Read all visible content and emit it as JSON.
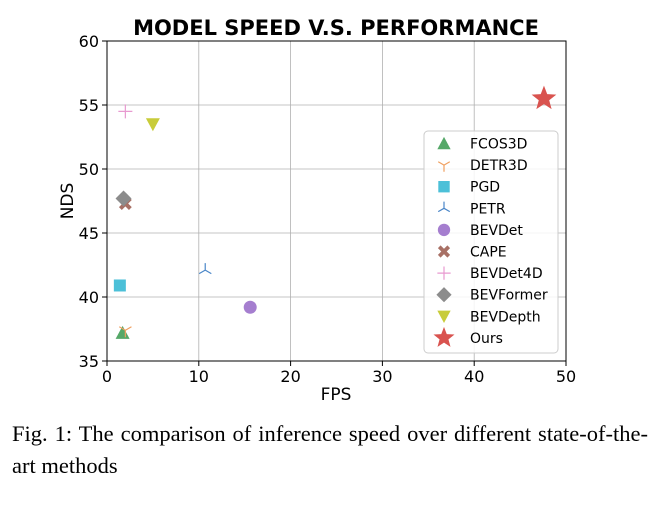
{
  "caption": "Fig. 1: The comparison of inference speed over different state-of-the-art methods",
  "chart_data": {
    "type": "scatter",
    "title": "MODEL SPEED V.S. PERFORMANCE",
    "xlabel": "FPS",
    "ylabel": "NDS",
    "xlim": [
      0,
      50
    ],
    "ylim": [
      35,
      60
    ],
    "xticks": [
      0,
      10,
      20,
      30,
      40,
      50
    ],
    "yticks": [
      35,
      40,
      45,
      50,
      55,
      60
    ],
    "grid": true,
    "legend_position": "right",
    "series": [
      {
        "name": "FCOS3D",
        "x": 1.7,
        "y": 37.2,
        "marker": "triangle-up",
        "color": "#55a868"
      },
      {
        "name": "DETR3D",
        "x": 2.0,
        "y": 37.4,
        "marker": "tri-down",
        "color": "#f0a060"
      },
      {
        "name": "PGD",
        "x": 1.4,
        "y": 40.9,
        "marker": "square",
        "color": "#4cc0d8"
      },
      {
        "name": "PETR",
        "x": 10.7,
        "y": 42.1,
        "marker": "tri-up",
        "color": "#4a86c8"
      },
      {
        "name": "BEVDet",
        "x": 15.6,
        "y": 39.2,
        "marker": "circle",
        "color": "#a57ecf"
      },
      {
        "name": "CAPE",
        "x": 2.0,
        "y": 47.3,
        "marker": "x",
        "color": "#a87065"
      },
      {
        "name": "BEVDet4D",
        "x": 2.0,
        "y": 54.5,
        "marker": "plus",
        "color": "#e89ad0"
      },
      {
        "name": "BEVFormer",
        "x": 1.8,
        "y": 47.7,
        "marker": "diamond",
        "color": "#8c8c8c"
      },
      {
        "name": "BEVDepth",
        "x": 5.0,
        "y": 53.5,
        "marker": "triangle-down",
        "color": "#c8cc3a"
      },
      {
        "name": "Ours",
        "x": 47.6,
        "y": 55.5,
        "marker": "star",
        "color": "#d9534f"
      }
    ]
  }
}
